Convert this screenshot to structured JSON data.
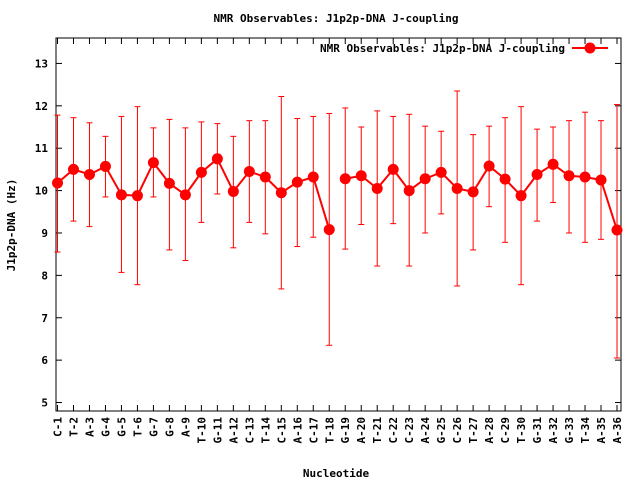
{
  "chart_data": {
    "type": "line",
    "title": "NMR Observables: J1p2p-DNA J-coupling",
    "xlabel": "Nucleotide",
    "ylabel": "J1p2p-DNA (Hz)",
    "ylim": [
      4.8,
      13.6
    ],
    "yticks": [
      5,
      6,
      7,
      8,
      9,
      10,
      11,
      12,
      13
    ],
    "grid": false,
    "legend_position": "top-right",
    "color": "#ff0000",
    "categories": [
      "C-1",
      "T-2",
      "A-3",
      "G-4",
      "G-5",
      "T-6",
      "G-7",
      "G-8",
      "A-9",
      "T-10",
      "G-11",
      "A-12",
      "C-13",
      "T-14",
      "C-15",
      "A-16",
      "C-17",
      "T-18",
      "G-19",
      "A-20",
      "T-21",
      "C-22",
      "C-23",
      "A-24",
      "G-25",
      "C-26",
      "T-27",
      "A-28",
      "C-29",
      "T-30",
      "G-31",
      "A-32",
      "G-33",
      "T-34",
      "A-35",
      "A-36"
    ],
    "series": [
      {
        "name": "NMR Observables: J1p2p-DNA J-coupling",
        "segments": [
          [
            0,
            17
          ],
          [
            18,
            35
          ]
        ],
        "values": [
          10.18,
          10.5,
          10.38,
          10.57,
          9.9,
          9.88,
          10.66,
          10.17,
          9.9,
          10.43,
          10.75,
          9.98,
          10.45,
          10.32,
          9.95,
          10.2,
          10.32,
          9.08,
          10.28,
          10.35,
          10.05,
          10.5,
          10.0,
          10.28,
          10.43,
          10.05,
          9.97,
          10.58,
          10.27,
          9.88,
          10.38,
          10.62,
          10.35,
          10.32,
          10.25,
          9.07
        ],
        "error_low": [
          8.55,
          9.28,
          9.15,
          9.85,
          8.07,
          7.78,
          9.85,
          8.6,
          8.35,
          9.25,
          9.92,
          8.65,
          9.25,
          8.98,
          7.68,
          8.68,
          8.9,
          6.35,
          8.62,
          9.2,
          8.22,
          9.22,
          8.22,
          9.0,
          9.45,
          7.75,
          8.6,
          9.62,
          8.78,
          7.78,
          9.28,
          9.72,
          9.0,
          8.78,
          8.85,
          6.05
        ],
        "error_high": [
          11.78,
          11.72,
          11.6,
          11.28,
          11.75,
          11.98,
          11.48,
          11.68,
          11.48,
          11.62,
          11.58,
          11.28,
          11.65,
          11.65,
          12.22,
          11.7,
          11.75,
          11.82,
          11.95,
          11.5,
          11.88,
          11.75,
          11.8,
          11.52,
          11.4,
          12.35,
          11.32,
          11.52,
          11.72,
          11.98,
          11.45,
          11.5,
          11.65,
          11.85,
          11.65,
          12.03
        ]
      }
    ]
  }
}
